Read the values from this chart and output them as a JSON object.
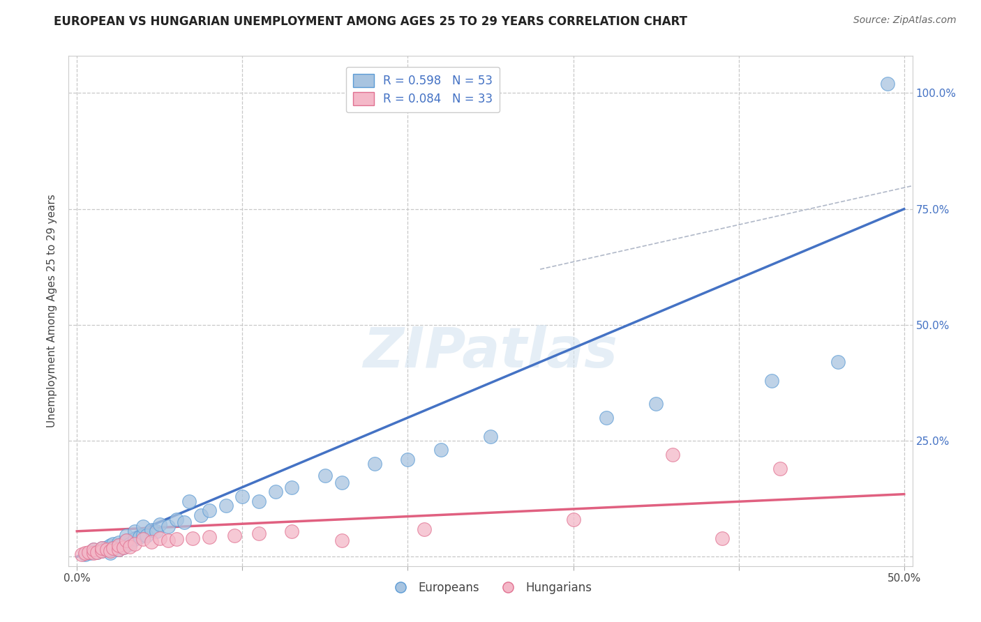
{
  "title": "EUROPEAN VS HUNGARIAN UNEMPLOYMENT AMONG AGES 25 TO 29 YEARS CORRELATION CHART",
  "source": "Source: ZipAtlas.com",
  "ylabel": "Unemployment Among Ages 25 to 29 years",
  "x_ticks": [
    0.0,
    0.1,
    0.2,
    0.3,
    0.4,
    0.5
  ],
  "x_tick_labels": [
    "0.0%",
    "",
    "",
    "",
    "",
    "50.0%"
  ],
  "y_ticks": [
    0.0,
    0.25,
    0.5,
    0.75,
    1.0
  ],
  "y_tick_labels_right": [
    "",
    "25.0%",
    "50.0%",
    "75.0%",
    "100.0%"
  ],
  "xlim": [
    -0.005,
    0.505
  ],
  "ylim": [
    -0.02,
    1.08
  ],
  "blue_color": "#a8c4e0",
  "blue_edge_color": "#5b9bd5",
  "blue_line_color": "#4472c4",
  "pink_color": "#f4b8c8",
  "pink_edge_color": "#e07090",
  "pink_line_color": "#e06080",
  "background_color": "#ffffff",
  "grid_color": "#c8c8c8",
  "watermark": "ZIPatlas",
  "blue_scatter_x": [
    0.005,
    0.008,
    0.01,
    0.01,
    0.012,
    0.015,
    0.015,
    0.018,
    0.018,
    0.02,
    0.02,
    0.02,
    0.022,
    0.022,
    0.025,
    0.025,
    0.025,
    0.028,
    0.03,
    0.03,
    0.03,
    0.032,
    0.035,
    0.035,
    0.038,
    0.04,
    0.04,
    0.042,
    0.045,
    0.048,
    0.05,
    0.055,
    0.06,
    0.065,
    0.068,
    0.075,
    0.08,
    0.09,
    0.1,
    0.11,
    0.12,
    0.13,
    0.15,
    0.16,
    0.18,
    0.2,
    0.22,
    0.25,
    0.32,
    0.35,
    0.42,
    0.46,
    0.49
  ],
  "blue_scatter_y": [
    0.005,
    0.008,
    0.01,
    0.015,
    0.01,
    0.012,
    0.018,
    0.015,
    0.02,
    0.008,
    0.015,
    0.025,
    0.018,
    0.028,
    0.015,
    0.022,
    0.03,
    0.02,
    0.025,
    0.035,
    0.045,
    0.028,
    0.038,
    0.055,
    0.042,
    0.048,
    0.065,
    0.045,
    0.058,
    0.055,
    0.07,
    0.065,
    0.08,
    0.075,
    0.12,
    0.09,
    0.1,
    0.11,
    0.13,
    0.12,
    0.14,
    0.15,
    0.175,
    0.16,
    0.2,
    0.21,
    0.23,
    0.26,
    0.3,
    0.33,
    0.38,
    0.42,
    1.02
  ],
  "pink_scatter_x": [
    0.003,
    0.005,
    0.007,
    0.01,
    0.01,
    0.012,
    0.015,
    0.015,
    0.018,
    0.02,
    0.022,
    0.025,
    0.025,
    0.028,
    0.03,
    0.032,
    0.035,
    0.04,
    0.045,
    0.05,
    0.055,
    0.06,
    0.07,
    0.08,
    0.095,
    0.11,
    0.13,
    0.16,
    0.21,
    0.3,
    0.36,
    0.39,
    0.425
  ],
  "pink_scatter_y": [
    0.005,
    0.008,
    0.01,
    0.008,
    0.015,
    0.01,
    0.012,
    0.018,
    0.015,
    0.012,
    0.018,
    0.015,
    0.025,
    0.02,
    0.035,
    0.022,
    0.028,
    0.038,
    0.032,
    0.04,
    0.035,
    0.038,
    0.04,
    0.042,
    0.045,
    0.05,
    0.055,
    0.035,
    0.06,
    0.08,
    0.22,
    0.04,
    0.19
  ],
  "blue_line_x0": 0.0,
  "blue_line_y0": 0.0,
  "blue_line_x1": 0.5,
  "blue_line_y1": 0.75,
  "pink_line_x0": 0.0,
  "pink_line_y0": 0.055,
  "pink_line_x1": 0.5,
  "pink_line_y1": 0.135,
  "diag_line_x0": 0.28,
  "diag_line_y0": 0.62,
  "diag_line_x1": 0.505,
  "diag_line_y1": 0.8,
  "legend_blue_label": "R = 0.598   N = 53",
  "legend_pink_label": "R = 0.084   N = 33",
  "legend_european": "Europeans",
  "legend_hungarian": "Hungarians",
  "title_fontsize": 12,
  "axis_label_fontsize": 11,
  "tick_fontsize": 11,
  "source_fontsize": 10
}
